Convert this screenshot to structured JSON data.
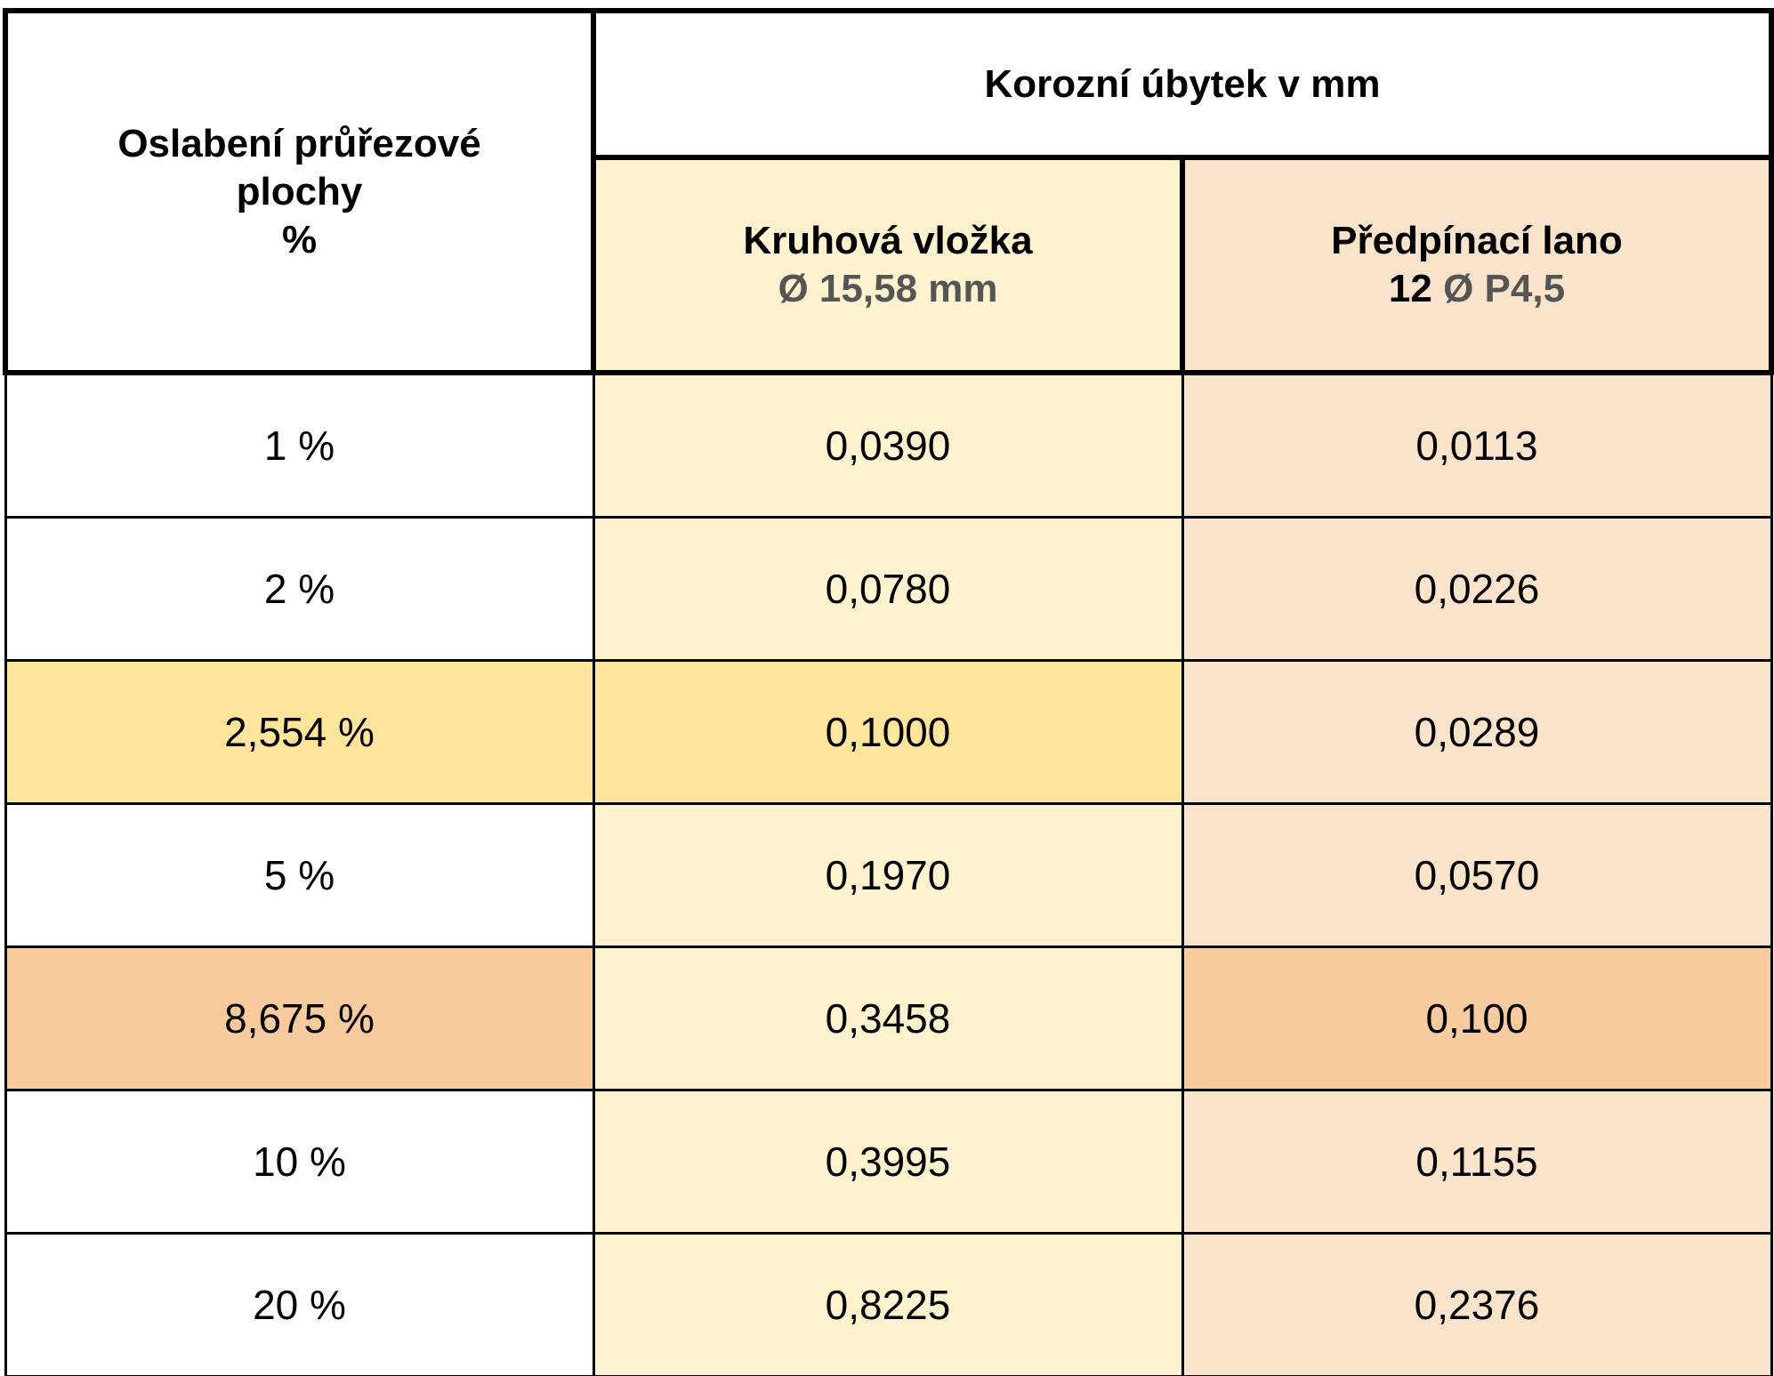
{
  "table": {
    "header": {
      "first_col": {
        "line1": "Oslabení průřezové",
        "line2": "plochy",
        "line3": "%"
      },
      "group_title": "Korozní úbytek v mm",
      "col2": {
        "title": "Kruhová vložka",
        "subtitle": "Ø 15,58 mm"
      },
      "col3": {
        "title": "Předpínací lano",
        "subtitle_count": "12",
        "subtitle_rest": "Ø  P4,5"
      }
    },
    "rows": [
      {
        "pct": "1 %",
        "kruhova": "0,0390",
        "lano": "0,0113"
      },
      {
        "pct": "2 %",
        "kruhova": "0,0780",
        "lano": "0,0226"
      },
      {
        "pct": "2,554 %",
        "kruhova": "0,1000",
        "lano": "0,0289"
      },
      {
        "pct": "5 %",
        "kruhova": "0,1970",
        "lano": "0,0570"
      },
      {
        "pct": "8,675 %",
        "kruhova": "0,3458",
        "lano": "0,100"
      },
      {
        "pct": "10 %",
        "kruhova": "0,3995",
        "lano": "0,1155"
      },
      {
        "pct": "20 %",
        "kruhova": "0,8225",
        "lano": "0,2376"
      }
    ],
    "colors": {
      "cream": "#fff2cf",
      "peach": "#fae3cb",
      "highlight_yellow": "#ffe59b",
      "highlight_orange": "#f7cb9d"
    }
  }
}
